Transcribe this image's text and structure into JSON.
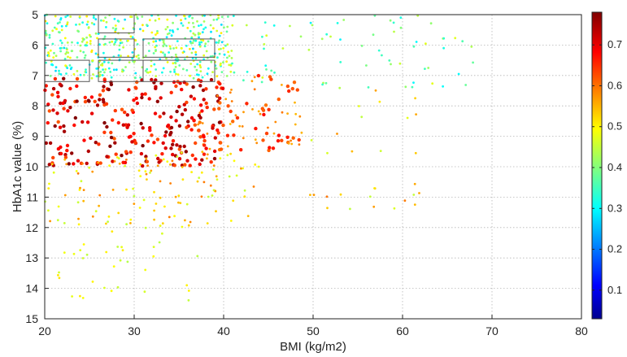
{
  "chart_data": {
    "type": "scatter",
    "title": "",
    "xlabel": "BMI (kg/m2)",
    "ylabel": "HbA1c value (%)",
    "xlim": [
      20,
      80
    ],
    "ylim": [
      15,
      5
    ],
    "y_axis_inverted": true,
    "grid": true,
    "grid_style": "dotted",
    "x_ticks": [
      "20",
      "30",
      "40",
      "50",
      "60",
      "70",
      "80"
    ],
    "y_ticks": [
      "5",
      "6",
      "7",
      "8",
      "9",
      "10",
      "11",
      "12",
      "13",
      "14",
      "15"
    ],
    "colorbar": {
      "colormap": "jet",
      "range": [
        0.03,
        0.78
      ],
      "ticks": [
        "0.1",
        "0.2",
        "0.3",
        "0.4",
        "0.5",
        "0.6",
        "0.7"
      ]
    },
    "rectangles": [
      {
        "x": [
          26,
          30
        ],
        "y": [
          5,
          5.6
        ]
      },
      {
        "x": [
          26,
          30
        ],
        "y": [
          5.8,
          6.4
        ]
      },
      {
        "x": [
          20,
          25
        ],
        "y": [
          6.5,
          7.2
        ]
      },
      {
        "x": [
          26,
          31
        ],
        "y": [
          6.5,
          7.2
        ]
      },
      {
        "x": [
          31,
          39
        ],
        "y": [
          5.8,
          6.4
        ]
      },
      {
        "x": [
          31,
          39
        ],
        "y": [
          6.5,
          7.2
        ]
      }
    ],
    "point_groups": [
      {
        "x_range": [
          20,
          41
        ],
        "y_range": [
          5,
          7.1
        ],
        "value_range": [
          0.28,
          0.52
        ],
        "count": 480
      },
      {
        "x_range": [
          41,
          68
        ],
        "y_range": [
          5,
          7.5
        ],
        "value_range": [
          0.3,
          0.48
        ],
        "count": 70
      },
      {
        "x_range": [
          20,
          40
        ],
        "y_range": [
          7.1,
          10
        ],
        "value_range": [
          0.62,
          0.78
        ],
        "count": 260
      },
      {
        "x_range": [
          36,
          49
        ],
        "y_range": [
          7,
          9.5
        ],
        "value_range": [
          0.55,
          0.68
        ],
        "count": 90
      },
      {
        "x_range": [
          48,
          62
        ],
        "y_range": [
          7.3,
          11.5
        ],
        "value_range": [
          0.45,
          0.6
        ],
        "count": 30
      },
      {
        "x_range": [
          20,
          44
        ],
        "y_range": [
          9.5,
          12
        ],
        "value_range": [
          0.45,
          0.6
        ],
        "count": 130
      },
      {
        "x_range": [
          21,
          38
        ],
        "y_range": [
          12,
          14.4
        ],
        "value_range": [
          0.44,
          0.52
        ],
        "count": 35
      }
    ]
  }
}
